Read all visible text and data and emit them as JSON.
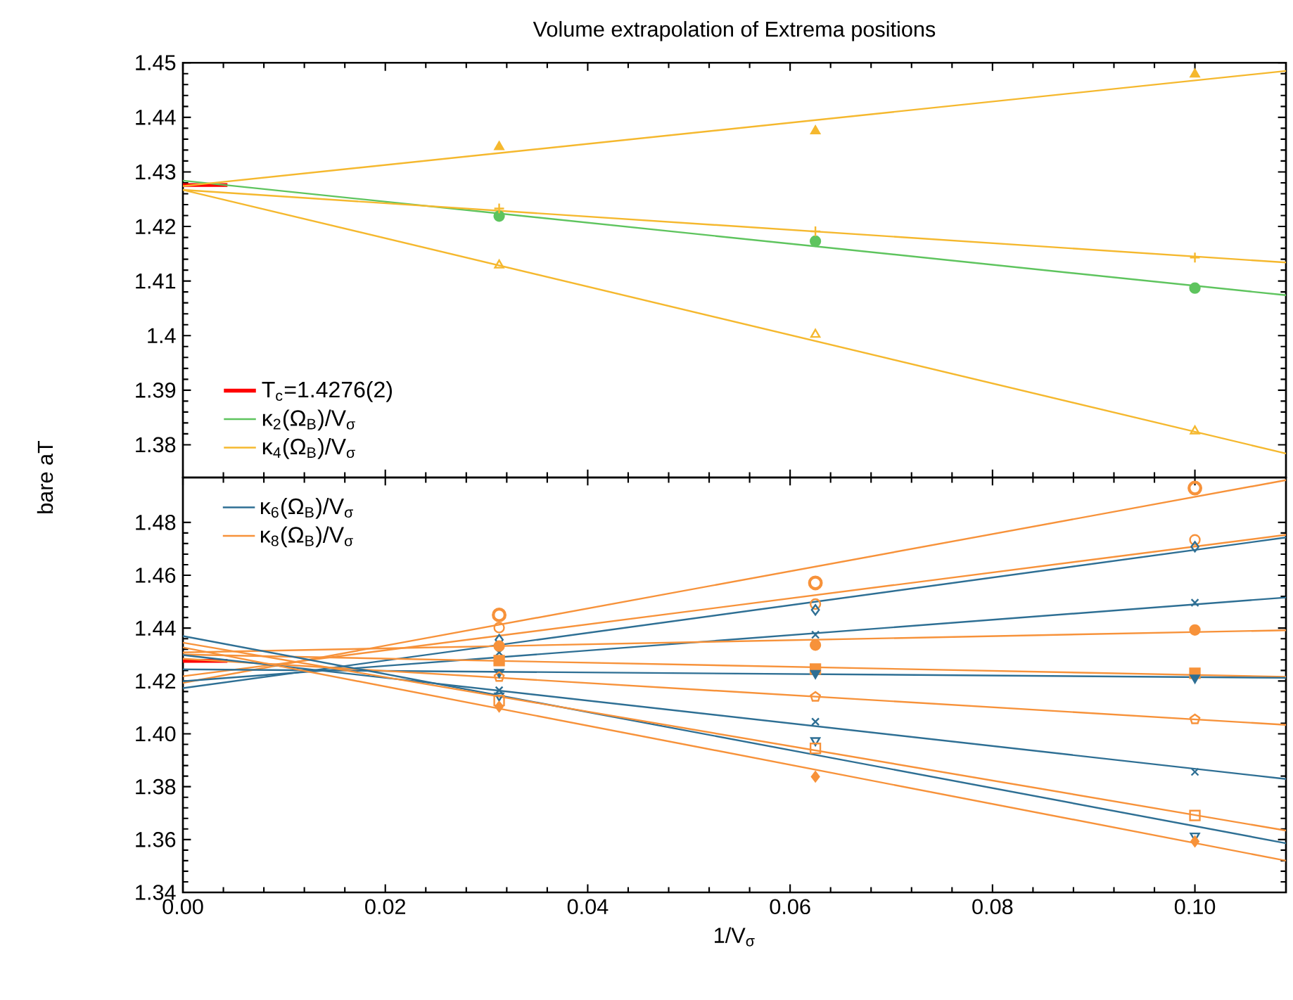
{
  "chart_data": [
    {
      "type": "scatter",
      "title": "Volume extrapolation of Extrema positions",
      "ylabel": "bare aT",
      "xlim": [
        0,
        0.109
      ],
      "xticks": [
        0,
        0.02,
        0.04,
        0.06,
        0.08,
        0.1
      ],
      "ylim": [
        1.374,
        1.45
      ],
      "yticks": [
        1.38,
        1.39,
        1.4,
        1.41,
        1.42,
        1.43,
        1.44,
        1.45
      ],
      "tick_labels": "y",
      "legend": "bottom left",
      "series": [
        {
          "name": "T$_{c}$=1.4276(2)",
          "type": "line",
          "color": "#ff0000",
          "x": [
            0,
            0.0044
          ],
          "values": [
            1.4276,
            1.4276
          ]
        },
        {
          "name": "κ$_{2}$(Ω$_{B}$)/V$_{σ}$",
          "type": "line",
          "color": "#5ec45e",
          "x": [
            0,
            0.109
          ],
          "values": [
            1.4284,
            1.4074
          ]
        },
        {
          "name": "κ$_{4}$(Ω$_{B}$)/V$_{σ}$",
          "type": "line",
          "color": "#f5b82e",
          "x": [
            0,
            0.109
          ],
          "values": [
            1.4274,
            1.4485
          ]
        },
        {
          "type": "line",
          "color": "#f5b82e",
          "x": [
            0,
            0.109
          ],
          "values": [
            1.4267,
            1.4134
          ]
        },
        {
          "type": "line",
          "color": "#f5b82e",
          "x": [
            0,
            0.109
          ],
          "values": [
            1.4267,
            1.3784
          ]
        },
        {
          "type": "scatter",
          "color": "#5ec45e",
          "marker": "circle",
          "x": [
            0.03125,
            0.0625,
            0.1
          ],
          "values": [
            1.4219,
            1.4173,
            1.4087
          ]
        },
        {
          "type": "scatter",
          "color": "#f5b82e",
          "marker": "triangle",
          "x": [
            0.03125,
            0.0625,
            0.1
          ],
          "values": [
            1.4346,
            1.4375,
            1.4479
          ]
        },
        {
          "type": "scatter",
          "color": "#f5b82e",
          "marker": "plus",
          "x": [
            0.03125,
            0.0625,
            0.1
          ],
          "values": [
            1.4233,
            1.4191,
            1.4143
          ]
        },
        {
          "type": "scatter",
          "color": "#f5b82e",
          "marker": "triangle-open",
          "x": [
            0.03125,
            0.0625,
            0.1
          ],
          "values": [
            1.4129,
            1.4002,
            1.3825
          ]
        }
      ]
    },
    {
      "type": "scatter",
      "xlabel": "1/V$_{σ}$",
      "xlim": [
        0,
        0.109
      ],
      "xticks": [
        {
          "value": 0,
          "label": "0.00"
        },
        {
          "value": 0.02,
          "label": "0.02"
        },
        {
          "value": 0.04,
          "label": "0.04"
        },
        {
          "value": 0.06,
          "label": "0.06"
        },
        {
          "value": 0.08,
          "label": "0.08"
        },
        {
          "value": 0.1,
          "label": "0.10"
        }
      ],
      "ylim": [
        1.34,
        1.497
      ],
      "yticks": [
        1.34,
        1.36,
        1.38,
        {
          "value": 1.4,
          "label": "1.40"
        },
        1.42,
        1.44,
        1.46,
        1.48
      ],
      "legend": "top left",
      "series": [
        {
          "name": "κ$_{6}$(Ω$_{B}$)/V$_{σ}$",
          "type": "line",
          "color": "#2e6f94",
          "x": [
            0,
            0.109
          ],
          "values": [
            1.4173,
            1.4743
          ]
        },
        {
          "name": "κ$_{8}$(Ω$_{B}$)/V$_{σ}$",
          "type": "line",
          "color": "#f7923a",
          "x": [
            0,
            0.109
          ],
          "values": [
            1.4193,
            1.496
          ]
        },
        {
          "type": "line",
          "color": "#ff0000",
          "x": [
            0,
            0.0044
          ],
          "values": [
            1.4276,
            1.4276
          ]
        },
        {
          "type": "line",
          "color": "#f7923a",
          "x": [
            0,
            0.109
          ],
          "values": [
            1.4218,
            1.4753
          ]
        },
        {
          "type": "line",
          "color": "#2e6f94",
          "x": [
            0,
            0.109
          ],
          "values": [
            1.4199,
            1.4516
          ]
        },
        {
          "type": "line",
          "color": "#f7923a",
          "x": [
            0,
            0.109
          ],
          "values": [
            1.4308,
            1.4392
          ]
        },
        {
          "type": "line",
          "color": "#f7923a",
          "x": [
            0,
            0.109
          ],
          "values": [
            1.43,
            1.4216
          ]
        },
        {
          "type": "line",
          "color": "#2e6f94",
          "x": [
            0,
            0.109
          ],
          "values": [
            1.4244,
            1.4212
          ]
        },
        {
          "type": "line",
          "color": "#f7923a",
          "x": [
            0,
            0.109
          ],
          "values": [
            1.4284,
            1.4034
          ]
        },
        {
          "type": "line",
          "color": "#2e6f94",
          "x": [
            0,
            0.109
          ],
          "values": [
            1.4298,
            1.3829
          ]
        },
        {
          "type": "line",
          "color": "#2e6f94",
          "x": [
            0,
            0.109
          ],
          "values": [
            1.437,
            1.3586
          ]
        },
        {
          "type": "line",
          "color": "#f7923a",
          "x": [
            0,
            0.109
          ],
          "values": [
            1.4345,
            1.3634
          ]
        },
        {
          "type": "line",
          "color": "#f7923a",
          "x": [
            0,
            0.109
          ],
          "values": [
            1.4327,
            1.352
          ]
        },
        {
          "type": "scatter",
          "color": "#f7923a",
          "marker": "circle-thick",
          "x": [
            0.03125,
            0.0625,
            0.1
          ],
          "values": [
            1.445,
            1.4571,
            1.493
          ]
        },
        {
          "type": "scatter",
          "color": "#f7923a",
          "marker": "circle-open",
          "x": [
            0.03125,
            0.0625,
            0.1
          ],
          "values": [
            1.4402,
            1.4491,
            1.4734
          ]
        },
        {
          "type": "scatter",
          "color": "#2e6f94",
          "marker": "diamond-open",
          "x": [
            0.03125,
            0.0625,
            0.1
          ],
          "values": [
            1.4356,
            1.4469,
            1.4708
          ]
        },
        {
          "type": "scatter",
          "color": "#2e6f94",
          "marker": "cross",
          "x": [
            0.03125,
            0.0625,
            0.1
          ],
          "values": [
            1.4308,
            1.4375,
            1.4496
          ]
        },
        {
          "type": "scatter",
          "color": "#f7923a",
          "marker": "circle",
          "x": [
            0.03125,
            0.0625,
            0.1
          ],
          "values": [
            1.4332,
            1.4336,
            1.4393
          ]
        },
        {
          "type": "scatter",
          "color": "#f7923a",
          "marker": "square",
          "x": [
            0.03125,
            0.0625,
            0.1
          ],
          "values": [
            1.4277,
            1.4245,
            1.4229
          ]
        },
        {
          "type": "scatter",
          "color": "#2e6f94",
          "marker": "triangle-down",
          "x": [
            0.03125,
            0.0625,
            0.1
          ],
          "values": [
            1.4233,
            1.4229,
            1.4212
          ]
        },
        {
          "color": "#f7923a",
          "x": [
            0.03125,
            0.0625,
            0.1
          ],
          "values": [
            1.4215,
            1.414,
            1.4055
          ]
        },
        {
          "type": "scatter",
          "color": "#2e6f94",
          "marker": "cross",
          "x": [
            0.03125,
            0.0625,
            0.1
          ],
          "values": [
            1.4165,
            1.4046,
            1.3856
          ]
        },
        {
          "type": "scatter",
          "color": "#2e6f94",
          "marker": "triangle-down-open",
          "x": [
            0.03125,
            0.0625,
            0.1
          ],
          "values": [
            1.4144,
            1.3975,
            1.3614
          ]
        },
        {
          "type": "scatter",
          "color": "#f7923a",
          "marker": "square-open",
          "x": [
            0.03125,
            0.0625,
            0.1
          ],
          "values": [
            1.4126,
            1.3945,
            1.3691
          ]
        },
        {
          "type": "scatter",
          "color": "#f7923a",
          "marker": "diamond",
          "x": [
            0.03125,
            0.0625,
            0.1
          ],
          "values": [
            1.4103,
            1.3838,
            1.3593
          ]
        }
      ]
    }
  ]
}
